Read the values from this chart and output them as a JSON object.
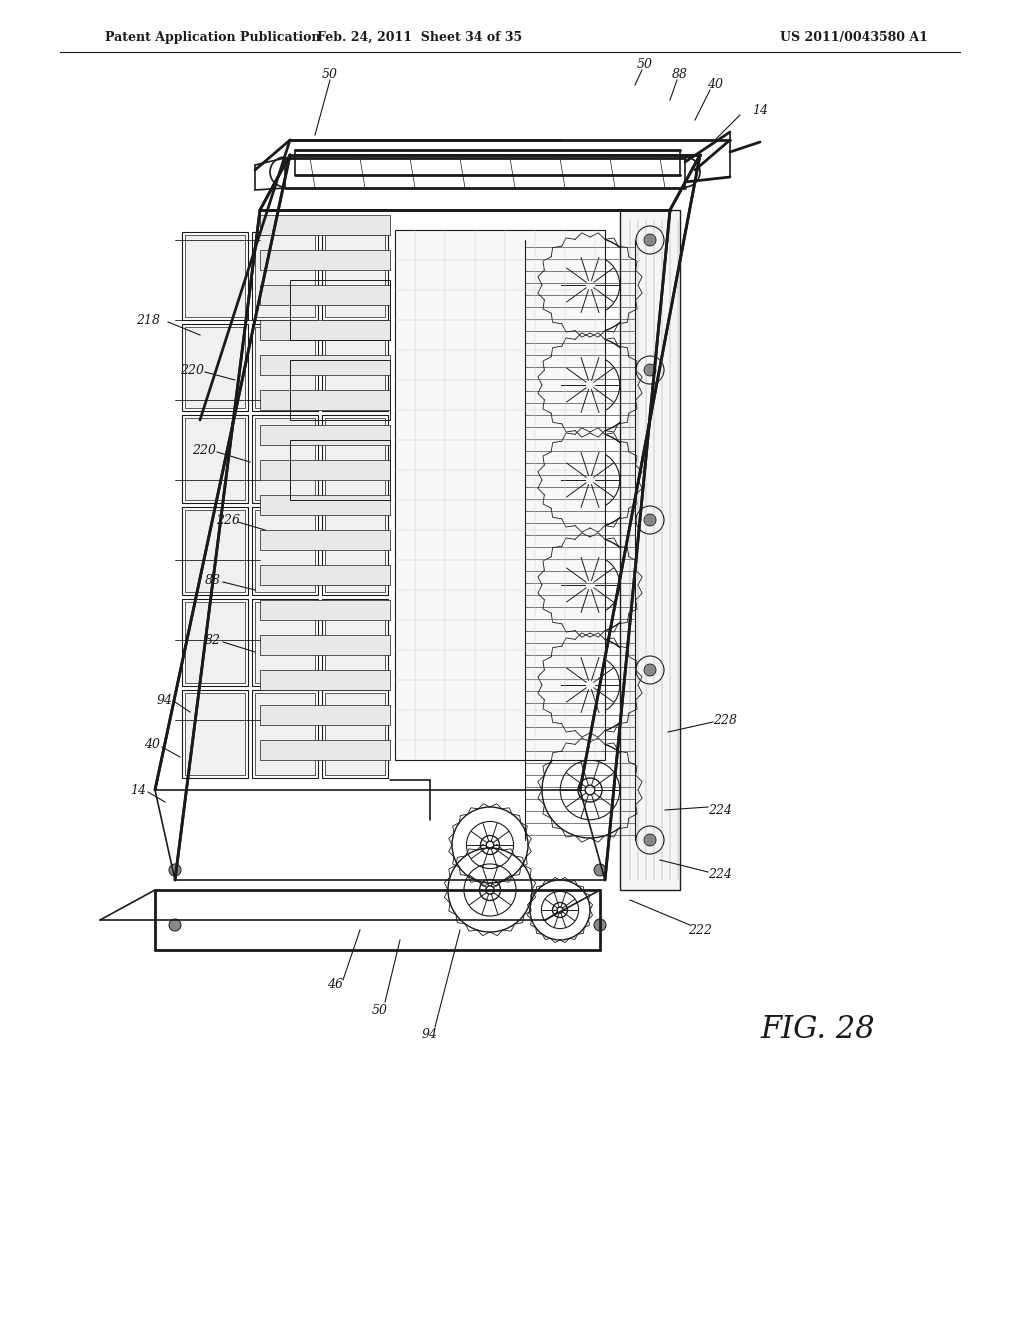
{
  "title_left": "Patent Application Publication",
  "title_center": "Feb. 24, 2011  Sheet 34 of 35",
  "title_right": "US 2011/0043580 A1",
  "fig_label": "FIG. 28",
  "background_color": "#ffffff",
  "line_color": "#1a1a1a",
  "labels": {
    "14_top": "14",
    "40_top": "40",
    "50_top": "50",
    "88_top": "88",
    "218": "218",
    "220_top": "220",
    "220_mid": "220",
    "226": "226",
    "82": "82",
    "88_mid": "88",
    "94_top": "94",
    "40_bot": "40",
    "14_bot": "14",
    "46": "46",
    "50_bot": "50",
    "94_bot": "94",
    "222": "222",
    "224_top": "224",
    "224_bot": "224",
    "228": "228"
  }
}
